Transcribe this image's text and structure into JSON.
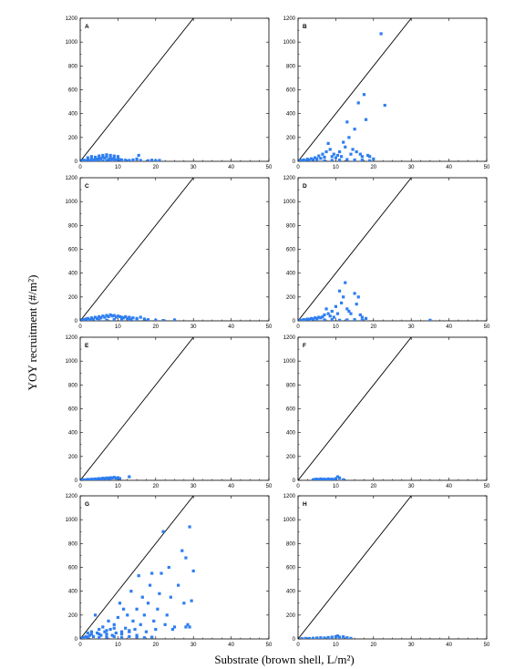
{
  "figure": {
    "xlabel": "Substrate (brown shell, L/m²)",
    "ylabel": "YOY recruitment (#/m²)"
  },
  "chart_data": {
    "type": "scatter",
    "xlim": [
      0,
      50
    ],
    "ylim": [
      0,
      1200
    ],
    "xticks": [
      "0",
      "10",
      "20",
      "30",
      "40",
      "50"
    ],
    "yticks": [
      "0",
      "200",
      "400",
      "600",
      "800",
      "1000",
      "1200"
    ],
    "reference_line": {
      "x": [
        0,
        30
      ],
      "y": [
        0,
        1200
      ]
    },
    "colors": {
      "points": "#2f7ef0",
      "line": "#000000"
    },
    "panels": [
      {
        "label": "A",
        "points": [
          [
            0.5,
            5
          ],
          [
            1,
            10
          ],
          [
            1.5,
            3
          ],
          [
            2,
            15
          ],
          [
            2.5,
            8
          ],
          [
            3,
            20
          ],
          [
            3.5,
            12
          ],
          [
            4,
            25
          ],
          [
            4.5,
            18
          ],
          [
            5,
            30
          ],
          [
            5.5,
            22
          ],
          [
            6,
            35
          ],
          [
            6.5,
            28
          ],
          [
            7,
            40
          ],
          [
            7.5,
            15
          ],
          [
            8,
            30
          ],
          [
            8.5,
            20
          ],
          [
            9,
            25
          ],
          [
            9.5,
            10
          ],
          [
            10,
            20
          ],
          [
            10.5,
            15
          ],
          [
            11,
            12
          ],
          [
            12,
            10
          ],
          [
            13,
            8
          ],
          [
            14,
            12
          ],
          [
            15,
            20
          ],
          [
            15.5,
            50
          ],
          [
            16,
            8
          ],
          [
            18,
            5
          ],
          [
            19,
            10
          ],
          [
            20,
            5
          ],
          [
            21,
            8
          ],
          [
            2,
            30
          ],
          [
            3,
            40
          ],
          [
            4,
            35
          ],
          [
            5,
            45
          ],
          [
            6,
            50
          ],
          [
            7,
            55
          ],
          [
            8,
            50
          ],
          [
            9,
            45
          ],
          [
            10,
            40
          ],
          [
            3,
            5
          ],
          [
            5,
            8
          ],
          [
            7,
            5
          ],
          [
            9,
            3
          ],
          [
            11,
            5
          ],
          [
            4,
            2
          ],
          [
            6,
            3
          ],
          [
            8,
            6
          ]
        ]
      },
      {
        "label": "B",
        "points": [
          [
            0.5,
            5
          ],
          [
            1,
            8
          ],
          [
            1.5,
            12
          ],
          [
            2,
            5
          ],
          [
            2.5,
            18
          ],
          [
            3,
            10
          ],
          [
            3.5,
            22
          ],
          [
            4,
            15
          ],
          [
            4.5,
            30
          ],
          [
            5,
            20
          ],
          [
            5.5,
            45
          ],
          [
            6,
            25
          ],
          [
            6.5,
            60
          ],
          [
            7,
            35
          ],
          [
            7.5,
            80
          ],
          [
            8,
            150
          ],
          [
            8.5,
            100
          ],
          [
            9,
            40
          ],
          [
            9.5,
            60
          ],
          [
            10,
            30
          ],
          [
            10.5,
            50
          ],
          [
            11,
            80
          ],
          [
            11.5,
            40
          ],
          [
            12,
            160
          ],
          [
            12.5,
            120
          ],
          [
            13,
            330
          ],
          [
            13.5,
            200
          ],
          [
            14,
            60
          ],
          [
            14.5,
            100
          ],
          [
            15,
            270
          ],
          [
            15.5,
            80
          ],
          [
            16,
            490
          ],
          [
            16.5,
            60
          ],
          [
            17,
            40
          ],
          [
            17.5,
            560
          ],
          [
            18,
            350
          ],
          [
            18.5,
            50
          ],
          [
            19,
            40
          ],
          [
            20,
            20
          ],
          [
            22,
            1070
          ],
          [
            23,
            470
          ],
          [
            5,
            3
          ],
          [
            7,
            5
          ],
          [
            9,
            8
          ],
          [
            11,
            10
          ],
          [
            13,
            15
          ],
          [
            15,
            12
          ],
          [
            17,
            10
          ],
          [
            19,
            5
          ]
        ]
      },
      {
        "label": "C",
        "points": [
          [
            0.5,
            5
          ],
          [
            1,
            10
          ],
          [
            1.5,
            15
          ],
          [
            2,
            20
          ],
          [
            2.5,
            10
          ],
          [
            3,
            25
          ],
          [
            3.5,
            15
          ],
          [
            4,
            30
          ],
          [
            4.5,
            20
          ],
          [
            5,
            35
          ],
          [
            5.5,
            25
          ],
          [
            6,
            40
          ],
          [
            6.5,
            30
          ],
          [
            7,
            45
          ],
          [
            7.5,
            35
          ],
          [
            8,
            50
          ],
          [
            8.5,
            40
          ],
          [
            9,
            45
          ],
          [
            9.5,
            30
          ],
          [
            10,
            40
          ],
          [
            10.5,
            35
          ],
          [
            11,
            30
          ],
          [
            11.5,
            25
          ],
          [
            12,
            35
          ],
          [
            12.5,
            20
          ],
          [
            13,
            30
          ],
          [
            13.5,
            15
          ],
          [
            14,
            25
          ],
          [
            15,
            20
          ],
          [
            16,
            30
          ],
          [
            17,
            15
          ],
          [
            18,
            10
          ],
          [
            20,
            5
          ],
          [
            22,
            3
          ],
          [
            25,
            8
          ],
          [
            3,
            5
          ],
          [
            5,
            8
          ],
          [
            7,
            5
          ],
          [
            9,
            10
          ],
          [
            11,
            8
          ],
          [
            13,
            5
          ],
          [
            15,
            8
          ]
        ]
      },
      {
        "label": "D",
        "points": [
          [
            0.5,
            3
          ],
          [
            1,
            5
          ],
          [
            1.5,
            10
          ],
          [
            2,
            8
          ],
          [
            2.5,
            15
          ],
          [
            3,
            12
          ],
          [
            3.5,
            20
          ],
          [
            4,
            15
          ],
          [
            4.5,
            25
          ],
          [
            5,
            20
          ],
          [
            5.5,
            30
          ],
          [
            6,
            25
          ],
          [
            6.5,
            35
          ],
          [
            7,
            50
          ],
          [
            7.5,
            100
          ],
          [
            8,
            60
          ],
          [
            8.5,
            40
          ],
          [
            9,
            80
          ],
          [
            9.5,
            30
          ],
          [
            10,
            120
          ],
          [
            10.5,
            60
          ],
          [
            11,
            250
          ],
          [
            11.5,
            150
          ],
          [
            12,
            200
          ],
          [
            12.5,
            320
          ],
          [
            13,
            100
          ],
          [
            13.5,
            80
          ],
          [
            14,
            60
          ],
          [
            15,
            230
          ],
          [
            15.5,
            140
          ],
          [
            16,
            200
          ],
          [
            16.5,
            50
          ],
          [
            17,
            30
          ],
          [
            18,
            20
          ],
          [
            35,
            5
          ],
          [
            3,
            2
          ],
          [
            5,
            5
          ],
          [
            7,
            8
          ],
          [
            9,
            10
          ],
          [
            11,
            5
          ],
          [
            13,
            8
          ],
          [
            15,
            10
          ],
          [
            17,
            5
          ]
        ]
      },
      {
        "label": "E",
        "points": [
          [
            0.5,
            2
          ],
          [
            1,
            5
          ],
          [
            1.5,
            3
          ],
          [
            2,
            8
          ],
          [
            2.5,
            5
          ],
          [
            3,
            10
          ],
          [
            3.5,
            8
          ],
          [
            4,
            12
          ],
          [
            4.5,
            10
          ],
          [
            5,
            15
          ],
          [
            5.5,
            12
          ],
          [
            6,
            18
          ],
          [
            6.5,
            15
          ],
          [
            7,
            20
          ],
          [
            7.5,
            18
          ],
          [
            8,
            22
          ],
          [
            8.5,
            20
          ],
          [
            9,
            25
          ],
          [
            9.5,
            18
          ],
          [
            10,
            22
          ],
          [
            10.5,
            15
          ],
          [
            13,
            30
          ],
          [
            2,
            2
          ],
          [
            4,
            4
          ],
          [
            6,
            6
          ],
          [
            8,
            8
          ]
        ]
      },
      {
        "label": "F",
        "points": [
          [
            4,
            5
          ],
          [
            4.5,
            8
          ],
          [
            5,
            10
          ],
          [
            5.5,
            6
          ],
          [
            6,
            12
          ],
          [
            6.5,
            8
          ],
          [
            7,
            10
          ],
          [
            7.5,
            5
          ],
          [
            8,
            12
          ],
          [
            8.5,
            8
          ],
          [
            9,
            10
          ],
          [
            9.5,
            6
          ],
          [
            10,
            15
          ],
          [
            10.5,
            30
          ],
          [
            11,
            20
          ],
          [
            12,
            5
          ],
          [
            5,
            3
          ],
          [
            7,
            4
          ],
          [
            9,
            3
          ]
        ]
      },
      {
        "label": "G",
        "points": [
          [
            0.5,
            5
          ],
          [
            1,
            10
          ],
          [
            1.5,
            20
          ],
          [
            2,
            15
          ],
          [
            2.5,
            30
          ],
          [
            3,
            40
          ],
          [
            3.5,
            20
          ],
          [
            4,
            200
          ],
          [
            4.5,
            50
          ],
          [
            5,
            80
          ],
          [
            5.5,
            30
          ],
          [
            6,
            100
          ],
          [
            6.5,
            60
          ],
          [
            7,
            40
          ],
          [
            7.5,
            150
          ],
          [
            8,
            80
          ],
          [
            8.5,
            30
          ],
          [
            9,
            120
          ],
          [
            9.5,
            50
          ],
          [
            10,
            180
          ],
          [
            10.5,
            300
          ],
          [
            11,
            60
          ],
          [
            11.5,
            250
          ],
          [
            12,
            90
          ],
          [
            12.5,
            200
          ],
          [
            13,
            70
          ],
          [
            13.5,
            400
          ],
          [
            14,
            150
          ],
          [
            14.5,
            80
          ],
          [
            15,
            250
          ],
          [
            15.5,
            530
          ],
          [
            16,
            120
          ],
          [
            16.5,
            350
          ],
          [
            17,
            200
          ],
          [
            17.5,
            60
          ],
          [
            18,
            300
          ],
          [
            18.5,
            450
          ],
          [
            19,
            550
          ],
          [
            19.5,
            150
          ],
          [
            20,
            80
          ],
          [
            20.5,
            250
          ],
          [
            21,
            380
          ],
          [
            21.5,
            550
          ],
          [
            22,
            900
          ],
          [
            22.5,
            120
          ],
          [
            23,
            200
          ],
          [
            23.5,
            600
          ],
          [
            24,
            350
          ],
          [
            24.5,
            80
          ],
          [
            25,
            100
          ],
          [
            26,
            450
          ],
          [
            27,
            740
          ],
          [
            27.5,
            300
          ],
          [
            28,
            680
          ],
          [
            28.5,
            120
          ],
          [
            29,
            940
          ],
          [
            29.5,
            320
          ],
          [
            30,
            570
          ],
          [
            28,
            100
          ],
          [
            29,
            100
          ],
          [
            5,
            10
          ],
          [
            7,
            15
          ],
          [
            9,
            20
          ],
          [
            11,
            10
          ],
          [
            13,
            20
          ],
          [
            15,
            15
          ],
          [
            17,
            10
          ],
          [
            19,
            15
          ],
          [
            3,
            60
          ],
          [
            5,
            40
          ],
          [
            7,
            70
          ],
          [
            9,
            90
          ],
          [
            11,
            40
          ],
          [
            13,
            60
          ],
          [
            15,
            30
          ],
          [
            2,
            50
          ]
        ]
      },
      {
        "label": "H",
        "points": [
          [
            1,
            3
          ],
          [
            2,
            5
          ],
          [
            3,
            4
          ],
          [
            4,
            6
          ],
          [
            5,
            8
          ],
          [
            6,
            10
          ],
          [
            7,
            8
          ],
          [
            8,
            12
          ],
          [
            9,
            15
          ],
          [
            10,
            20
          ],
          [
            10.5,
            25
          ],
          [
            11,
            15
          ],
          [
            12,
            18
          ],
          [
            13,
            10
          ],
          [
            14,
            5
          ],
          [
            3,
            2
          ],
          [
            5,
            4
          ],
          [
            7,
            3
          ],
          [
            9,
            5
          ],
          [
            11,
            4
          ]
        ]
      }
    ]
  }
}
